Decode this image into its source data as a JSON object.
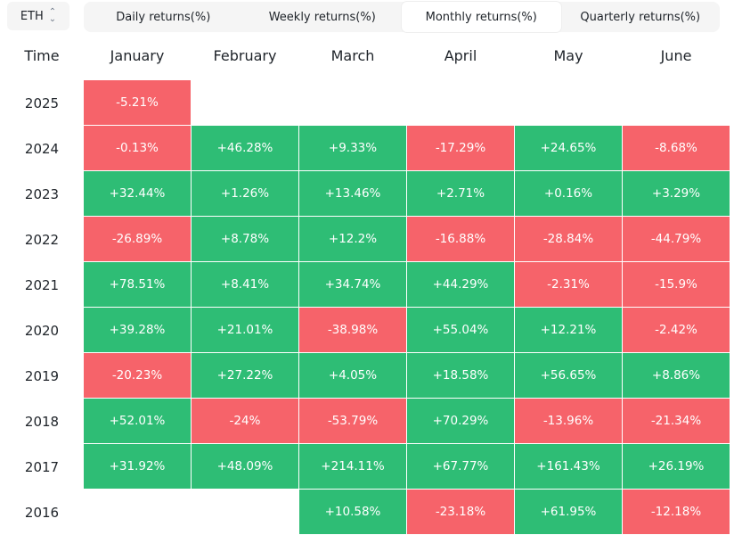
{
  "asset_select": {
    "value": "ETH",
    "icon": "updown-chevron-icon"
  },
  "tabs": [
    {
      "label": "Daily returns(%)",
      "active": false
    },
    {
      "label": "Weekly returns(%)",
      "active": false
    },
    {
      "label": "Monthly returns(%)",
      "active": true
    },
    {
      "label": "Quarterly returns(%)",
      "active": false
    }
  ],
  "table": {
    "time_header": "Time",
    "months": [
      "January",
      "February",
      "March",
      "April",
      "May",
      "June"
    ],
    "rows": [
      {
        "year": "2025",
        "values": [
          "-5.21%",
          "",
          "",
          "",
          "",
          ""
        ]
      },
      {
        "year": "2024",
        "values": [
          "-0.13%",
          "+46.28%",
          "+9.33%",
          "-17.29%",
          "+24.65%",
          "-8.68%"
        ]
      },
      {
        "year": "2023",
        "values": [
          "+32.44%",
          "+1.26%",
          "+13.46%",
          "+2.71%",
          "+0.16%",
          "+3.29%"
        ]
      },
      {
        "year": "2022",
        "values": [
          "-26.89%",
          "+8.78%",
          "+12.2%",
          "-16.88%",
          "-28.84%",
          "-44.79%"
        ]
      },
      {
        "year": "2021",
        "values": [
          "+78.51%",
          "+8.41%",
          "+34.74%",
          "+44.29%",
          "-2.31%",
          "-15.9%"
        ]
      },
      {
        "year": "2020",
        "values": [
          "+39.28%",
          "+21.01%",
          "-38.98%",
          "+55.04%",
          "+12.21%",
          "-2.42%"
        ]
      },
      {
        "year": "2019",
        "values": [
          "-20.23%",
          "+27.22%",
          "+4.05%",
          "+18.58%",
          "+56.65%",
          "+8.86%"
        ]
      },
      {
        "year": "2018",
        "values": [
          "+52.01%",
          "-24%",
          "-53.79%",
          "+70.29%",
          "-13.96%",
          "-21.34%"
        ]
      },
      {
        "year": "2017",
        "values": [
          "+31.92%",
          "+48.09%",
          "+214.11%",
          "+67.77%",
          "+161.43%",
          "+26.19%"
        ]
      },
      {
        "year": "2016",
        "values": [
          "",
          "",
          "+10.58%",
          "-23.18%",
          "+61.95%",
          "-12.18%"
        ]
      }
    ]
  },
  "colors": {
    "positive": "#2ebd75",
    "negative": "#f6636a"
  }
}
